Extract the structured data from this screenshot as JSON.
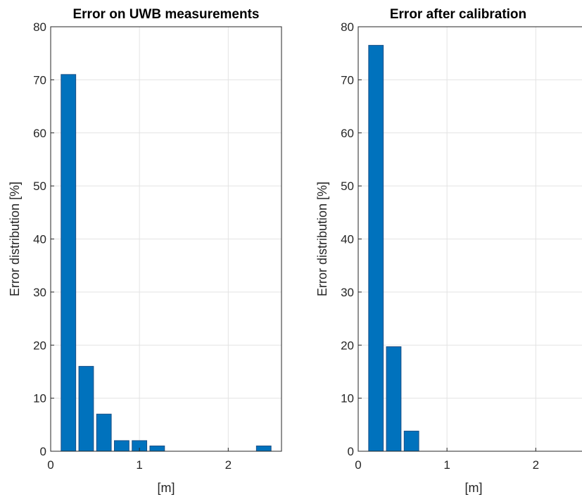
{
  "chart_data": [
    {
      "type": "bar",
      "title": "Error on UWB measurements",
      "xlabel": "[m]",
      "ylabel": "Error distribution [%]",
      "x": [
        0.2,
        0.4,
        0.6,
        0.8,
        1.0,
        1.2,
        1.4,
        1.6,
        1.8,
        2.0,
        2.2,
        2.4
      ],
      "values": [
        71,
        16,
        7,
        2,
        2,
        1,
        0,
        0,
        0,
        0,
        0,
        1
      ],
      "xlim": [
        0,
        2.6
      ],
      "ylim": [
        0,
        80
      ],
      "xticks": [
        0,
        1,
        2
      ],
      "yticks": [
        0,
        10,
        20,
        30,
        40,
        50,
        60,
        70,
        80
      ],
      "grid": true,
      "color": "#0072bd"
    },
    {
      "type": "bar",
      "title": "Error after calibration",
      "xlabel": "[m]",
      "ylabel": "Error distribution [%]",
      "x": [
        0.2,
        0.4,
        0.6,
        0.8,
        1.0,
        1.2,
        1.4,
        1.6,
        1.8,
        2.0,
        2.2,
        2.4
      ],
      "values": [
        76.5,
        19.7,
        3.8,
        0,
        0,
        0,
        0,
        0,
        0,
        0,
        0,
        0
      ],
      "xlim": [
        0,
        2.6
      ],
      "ylim": [
        0,
        80
      ],
      "xticks": [
        0,
        1,
        2
      ],
      "yticks": [
        0,
        10,
        20,
        30,
        40,
        50,
        60,
        70,
        80
      ],
      "grid": true,
      "color": "#0072bd"
    }
  ]
}
